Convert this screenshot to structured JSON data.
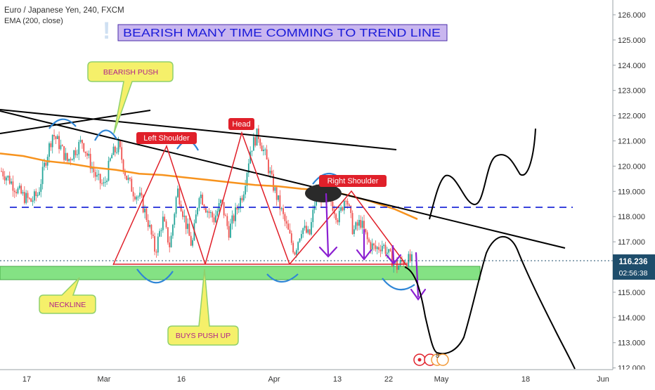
{
  "header": {
    "symbol": "Euro / Japanese Yen, 240, FXCM",
    "indicator": "EMA (200, close)"
  },
  "price_axis": {
    "ticks": [
      "126.000",
      "125.000",
      "124.000",
      "123.000",
      "122.000",
      "121.000",
      "120.000",
      "119.000",
      "118.000",
      "117.000",
      "115.000",
      "114.000",
      "113.000",
      "112.000"
    ],
    "current_price": "116.236",
    "countdown": "02:56:38"
  },
  "time_axis": {
    "labels": [
      "17",
      "Mar",
      "16",
      "Apr",
      "13",
      "22",
      "May",
      "18",
      "Jun"
    ]
  },
  "annotations": {
    "title_banner": "BEARISH  MANY TIME  COMMING TO  TREND LINE",
    "bearish_push": "BEARISH    PUSH",
    "neckline": "NECKLINE",
    "buys_push_up": "BUYS PUSH UP",
    "left_shoulder": "Left Shoulder",
    "head": "Head",
    "right_shoulder": "Right Shoulder",
    "exclaim": "!",
    "badge": "8"
  },
  "colors": {
    "up_candle": "#26a69a",
    "down_candle": "#ef5350",
    "ema": "#f7931e",
    "trendline": "#000000",
    "dashed_level": "#1e2ad7",
    "neckline_zone": "#7ee17e",
    "pattern": "#e0202a",
    "projection_arrow": "#8b1fd1",
    "arc": "#2f86d6",
    "callout_fill": "#f5f06a",
    "banner_fill": "#c9b6ef",
    "price_tag": "#1e4d6b"
  },
  "chart_data": {
    "type": "candlestick",
    "pair": "EUR/JPY",
    "timeframe": "240",
    "ylim": [
      112,
      126.5
    ],
    "current_price": 116.236,
    "horizontal_level": 118.4,
    "neckline_zone": [
      115.5,
      116.0
    ],
    "indicator": "EMA (200, close)",
    "close_path": [
      119.8,
      119.5,
      119.1,
      118.8,
      118.6,
      118.9,
      120.2,
      121.3,
      120.8,
      120.2,
      120.6,
      121.0,
      120.2,
      119.5,
      119.2,
      120.4,
      120.8,
      119.6,
      119.0,
      118.7,
      117.8,
      116.6,
      117.9,
      116.8,
      119.1,
      117.9,
      116.8,
      119.0,
      118.3,
      117.9,
      118.6,
      117.4,
      118.2,
      119.0,
      120.7,
      121.3,
      120.4,
      119.3,
      118.4,
      117.5,
      116.6,
      117.6,
      117.2,
      119.0,
      118.7,
      118.6,
      117.9,
      118.9,
      117.4,
      117.8,
      117.0,
      116.7,
      116.9,
      116.4,
      116.0,
      116.3,
      116.236
    ],
    "ema_path": [
      120.5,
      120.4,
      120.2,
      120.1,
      119.95,
      119.85,
      119.7,
      119.65,
      119.55,
      119.45,
      119.35,
      119.25,
      119.2,
      119.1,
      119.05,
      118.85,
      118.6,
      118.3,
      117.9
    ]
  }
}
